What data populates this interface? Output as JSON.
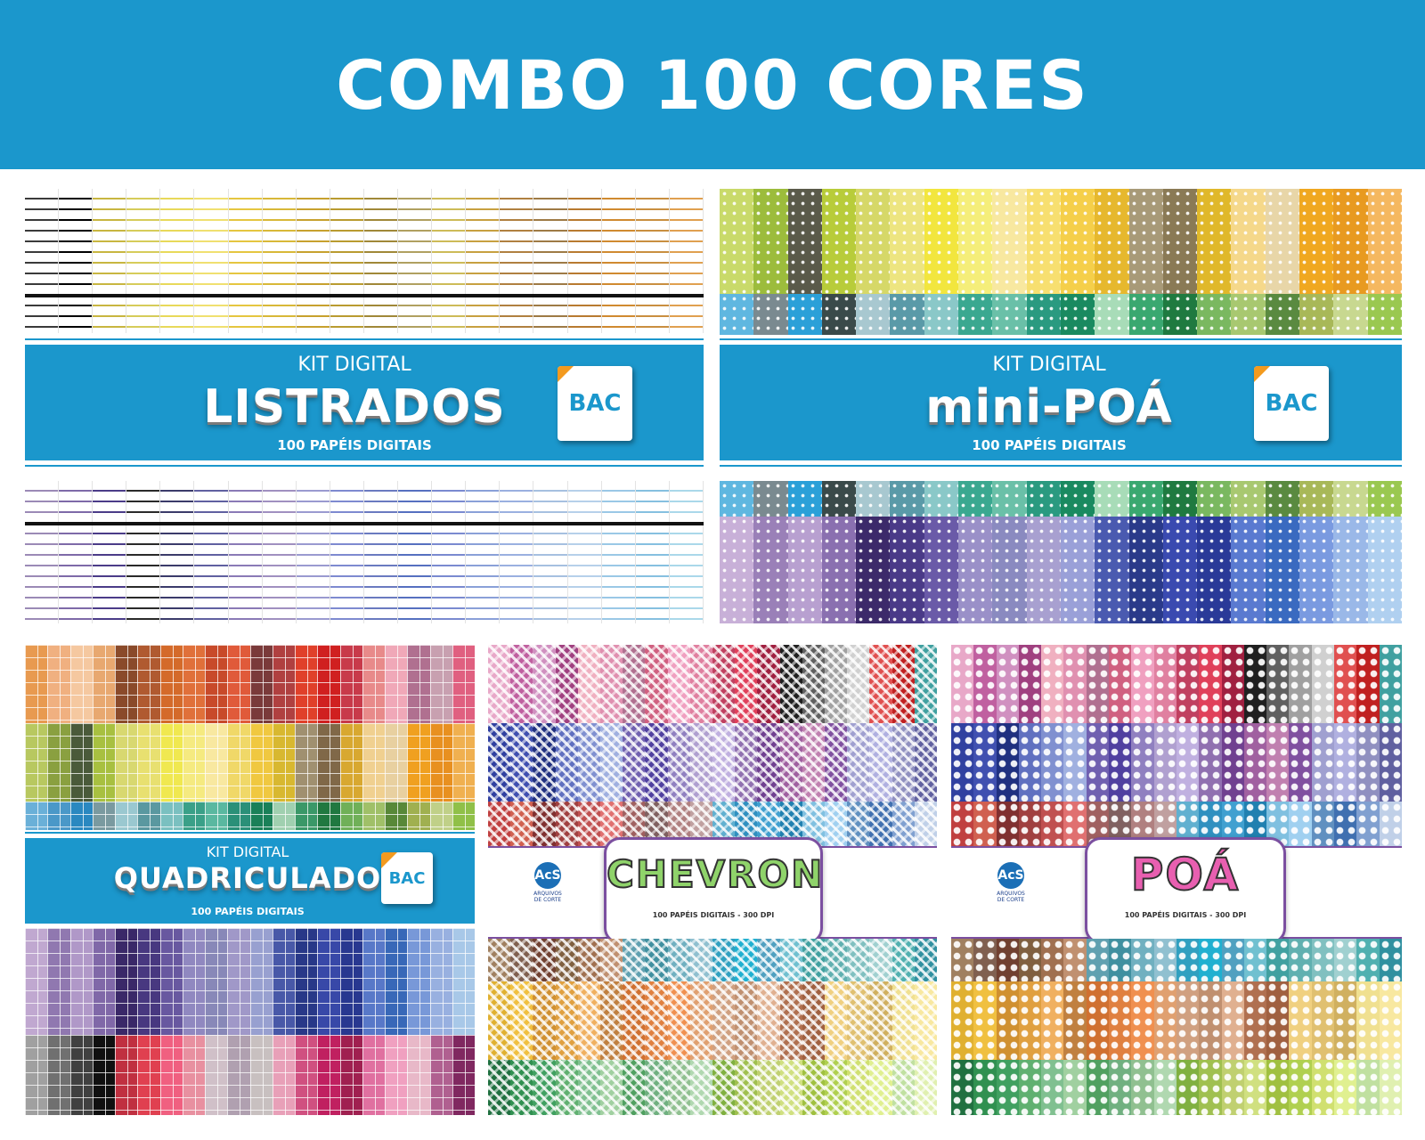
{
  "banner": {
    "title": "COMBO 100 CORES",
    "color": "#1b97cc"
  },
  "listrados": {
    "kit_label": "KIT DIGITAL",
    "title": "LISTRADOS",
    "subtitle": "100 PAPÉIS DIGITAIS",
    "logo": "BAC",
    "top_colors": [
      "#3a3a3a",
      "#000000",
      "#c8b640",
      "#d6cc5a",
      "#e8d95a",
      "#f0e070",
      "#e5c640",
      "#d8b838",
      "#c7a12e",
      "#b99b30",
      "#a08838",
      "#b0a060",
      "#cdbb58",
      "#c7a040",
      "#b08040",
      "#9e7a45",
      "#b87a30",
      "#d08a30",
      "#c98f40",
      "#e0a050"
    ],
    "bottom_colors": [
      "#9b8ab6",
      "#7e6aa8",
      "#4b3c88",
      "#2a2a2a",
      "#3b3b6a",
      "#6060a0",
      "#8a7ab6",
      "#a090c0",
      "#9a9ad0",
      "#7e8ad0",
      "#6a7ac0",
      "#5670c0",
      "#7a8ad0",
      "#8aa0d8",
      "#9ab0e0",
      "#a6c0e0",
      "#b6d0ea",
      "#9ac8e6",
      "#86c0e0",
      "#aad8ea"
    ]
  },
  "minipoa": {
    "kit_label": "KIT DIGITAL",
    "title": "mini-POÁ",
    "subtitle": "100 PAPÉIS DIGITAIS",
    "logo": "BAC",
    "top_colors": [
      "#c9da6a",
      "#9cbc3c",
      "#5a5a4a",
      "#b8cc3a",
      "#d6d868",
      "#ede580",
      "#f2e63e",
      "#f5ee7a",
      "#f8e8a0",
      "#f7df70",
      "#f5cf4a",
      "#e6b82e",
      "#a89a78",
      "#8a7a55",
      "#e0b82a",
      "#f5d88a",
      "#e8d6a8",
      "#f0a820",
      "#e89a20",
      "#f5b860"
    ],
    "mid_colors": [
      "#5fb7e0",
      "#7a8a90",
      "#2ba0d8",
      "#3a4a4a",
      "#a8c8d0",
      "#5a9aa8",
      "#8ac8c8",
      "#3aa890",
      "#6ac0a8",
      "#2a9a80",
      "#1a8a60",
      "#a8dcb8",
      "#3aa870",
      "#1f7a40",
      "#7ab860",
      "#a8c870",
      "#5a8a40",
      "#a8b858",
      "#c8d890",
      "#9ac850"
    ],
    "bottom_colors": [
      "#c8b0d8",
      "#9a80b8",
      "#b8a0d0",
      "#8a70b0",
      "#3c2a6a",
      "#4a3a88",
      "#6a5aa8",
      "#9a90c8",
      "#8a8ac0",
      "#a8a0d0",
      "#9aa0d8",
      "#4a5ab0",
      "#2a3a8a",
      "#3a4ab0",
      "#2a3a98",
      "#5a7ad0",
      "#3a6ac0",
      "#7a9ae0",
      "#9ab8e8",
      "#b0d0f0"
    ]
  },
  "quadriculado": {
    "kit_label": "KIT DIGITAL",
    "title": "QUADRICULADO",
    "subtitle": "100 PAPÉIS DIGITAIS",
    "logo": "BAC",
    "row1_colors": [
      "#e89a50",
      "#f0b080",
      "#f5c8a0",
      "#e8a870",
      "#8a4a2a",
      "#b05a30",
      "#d46a2a",
      "#e0703a",
      "#c84a2a",
      "#e05a3a",
      "#7a3a3a",
      "#b04040",
      "#e0402a",
      "#d02020",
      "#c83a4a",
      "#e88a8a",
      "#f0a8b8",
      "#b07090",
      "#c8a0b0",
      "#e06080"
    ],
    "row2_colors": [
      "#b8c860",
      "#8aa040",
      "#4a5a3a",
      "#a8c040",
      "#d8d870",
      "#e8e070",
      "#f0e850",
      "#f5ea80",
      "#f8e8a0",
      "#f0d868",
      "#f0c840",
      "#d8b830",
      "#a09070",
      "#806848",
      "#d8a830",
      "#f0d090",
      "#e8d0a0",
      "#f0a020",
      "#e89020",
      "#f0b050"
    ],
    "row3_colors": [
      "#6ab0d8",
      "#4a98c8",
      "#2a88c0",
      "#7a9aa0",
      "#9ac8d0",
      "#5a98a0",
      "#7ac0c0",
      "#3aa088",
      "#5ab8a0",
      "#2a9078",
      "#1a8058",
      "#a0d0b0",
      "#3a9868",
      "#207840",
      "#70b058",
      "#a0c068",
      "#588838",
      "#a0b050",
      "#c0d088",
      "#90c048"
    ],
    "row4_colors": [
      "#c0a8d0",
      "#9078b0",
      "#b098c8",
      "#8068a8",
      "#3a2868",
      "#483880",
      "#6858a0",
      "#9088c0",
      "#8888b8",
      "#a098c8",
      "#98a0d0",
      "#4858a8",
      "#283888",
      "#3848a8",
      "#283890",
      "#5878c8",
      "#3868b8",
      "#7898d8",
      "#98b0e0",
      "#a8c8e8"
    ],
    "row5_colors": [
      "#a0a0a0",
      "#707070",
      "#404040",
      "#101010",
      "#c03040",
      "#e04050",
      "#f06080",
      "#e890a0",
      "#d0c0c8",
      "#b0a0b0",
      "#c8c0c0",
      "#e8a0b8",
      "#d05080",
      "#c02060",
      "#a02050",
      "#e070a0",
      "#f0a0c0",
      "#e8b8c8",
      "#b06090",
      "#802860"
    ]
  },
  "chevron": {
    "title": "CHEVRON",
    "subtitle": "100 PAPÉIS DIGITAIS - 300 DPI",
    "brand_initials": "AcS",
    "brand_line1": "ARQUIVOS",
    "brand_line2": "DE CORTE",
    "row1_colors": [
      "#e8a8c8",
      "#c060a0",
      "#d090c0",
      "#a04080",
      "#f0b0c0",
      "#e090b0",
      "#b07090",
      "#d06080",
      "#f0a0c0",
      "#e080a0",
      "#c04060",
      "#e0405a",
      "#a02040",
      "#202020",
      "#606060",
      "#a0a0a0",
      "#d0d0d0",
      "#e05050",
      "#c02020",
      "#40a0a0"
    ],
    "row2_colors": [
      "#3040a0",
      "#4050b0",
      "#203080",
      "#6070c0",
      "#8090d0",
      "#a0b0e0",
      "#7060b0",
      "#5040a0",
      "#9080c0",
      "#b0a0d0",
      "#c0b0e0",
      "#9070b0",
      "#704090",
      "#a060a0",
      "#c080b0",
      "#8050a0",
      "#a0a0d0",
      "#b0b0e0",
      "#9090c0",
      "#6060a0"
    ],
    "row3_colors": [
      "#c04040",
      "#d06050",
      "#803030",
      "#a04040",
      "#c05050",
      "#e07070",
      "#a06060",
      "#806060",
      "#b08080",
      "#c0a0a0",
      "#60b0d0",
      "#3090c0",
      "#40a0d0",
      "#2080b0",
      "#80c0e0",
      "#a0d0f0",
      "#6090c0",
      "#4070b0",
      "#80a0d0",
      "#c0d0e8"
    ],
    "row4_colors": [
      "#a08060",
      "#806050",
      "#704030",
      "#806040",
      "#a07050",
      "#c09070",
      "#60a0b0",
      "#4090a0",
      "#70b0c0",
      "#90c0d0",
      "#30a0c0",
      "#20b0d0",
      "#50a0c0",
      "#70c0d0",
      "#40a0a0",
      "#60b0b0",
      "#80c0c0",
      "#a0d0d0",
      "#50b0b0",
      "#3090a0"
    ],
    "row5_colors": [
      "#e0b030",
      "#f0c040",
      "#d09030",
      "#e0a040",
      "#f0b060",
      "#c08040",
      "#d07030",
      "#e08040",
      "#f09050",
      "#e0a070",
      "#d0a080",
      "#c09070",
      "#e0b090",
      "#b07050",
      "#a06040",
      "#f0d080",
      "#e0c070",
      "#d0b060",
      "#f0e090",
      "#f8e8a0"
    ],
    "row6_colors": [
      "#207040",
      "#309050",
      "#40a060",
      "#60b070",
      "#80c090",
      "#a0d0a0",
      "#50a060",
      "#70b080",
      "#90c090",
      "#b0d8b0",
      "#80b040",
      "#a0c050",
      "#c0d070",
      "#d0e080",
      "#a0c040",
      "#b0d050",
      "#d0e070",
      "#e0f090",
      "#c0e0a0",
      "#e0f0b0"
    ]
  },
  "poa": {
    "title": "POÁ",
    "subtitle": "100 PAPÉIS DIGITAIS - 300 DPI",
    "brand_initials": "AcS",
    "brand_line1": "ARQUIVOS",
    "brand_line2": "DE CORTE",
    "row1_colors": [
      "#e8a8c8",
      "#c060a0",
      "#d090c0",
      "#a04080",
      "#f0b0c0",
      "#e090b0",
      "#b07090",
      "#d06080",
      "#f0a0c0",
      "#e080a0",
      "#c04060",
      "#e0405a",
      "#a02040",
      "#202020",
      "#606060",
      "#a0a0a0",
      "#d0d0d0",
      "#e05050",
      "#c02020",
      "#40a0a0"
    ],
    "row2_colors": [
      "#3040a0",
      "#4050b0",
      "#203080",
      "#6070c0",
      "#8090d0",
      "#a0b0e0",
      "#7060b0",
      "#5040a0",
      "#9080c0",
      "#b0a0d0",
      "#c0b0e0",
      "#9070b0",
      "#704090",
      "#a060a0",
      "#c080b0",
      "#8050a0",
      "#a0a0d0",
      "#b0b0e0",
      "#9090c0",
      "#6060a0"
    ],
    "row3_colors": [
      "#c04040",
      "#d06050",
      "#803030",
      "#a04040",
      "#c05050",
      "#e07070",
      "#a06060",
      "#806060",
      "#b08080",
      "#c0a0a0",
      "#60b0d0",
      "#3090c0",
      "#40a0d0",
      "#2080b0",
      "#80c0e0",
      "#a0d0f0",
      "#6090c0",
      "#4070b0",
      "#80a0d0",
      "#c0d0e8"
    ],
    "row4_colors": [
      "#a08060",
      "#806050",
      "#704030",
      "#806040",
      "#a07050",
      "#c09070",
      "#60a0b0",
      "#4090a0",
      "#70b0c0",
      "#90c0d0",
      "#30a0c0",
      "#20b0d0",
      "#50a0c0",
      "#70c0d0",
      "#40a0a0",
      "#60b0b0",
      "#80c0c0",
      "#a0d0d0",
      "#50b0b0",
      "#3090a0"
    ],
    "row5_colors": [
      "#e0b030",
      "#f0c040",
      "#d09030",
      "#e0a040",
      "#f0b060",
      "#c08040",
      "#d07030",
      "#e08040",
      "#f09050",
      "#e0a070",
      "#d0a080",
      "#c09070",
      "#e0b090",
      "#b07050",
      "#a06040",
      "#f0d080",
      "#e0c070",
      "#d0b060",
      "#f0e090",
      "#f8e8a0"
    ],
    "row6_colors": [
      "#207040",
      "#309050",
      "#40a060",
      "#60b070",
      "#80c090",
      "#a0d0a0",
      "#50a060",
      "#70b080",
      "#90c090",
      "#b0d8b0",
      "#80b040",
      "#a0c050",
      "#c0d070",
      "#d0e080",
      "#a0c040",
      "#b0d050",
      "#d0e070",
      "#e0f090",
      "#c0e0a0",
      "#e0f0b0"
    ]
  }
}
